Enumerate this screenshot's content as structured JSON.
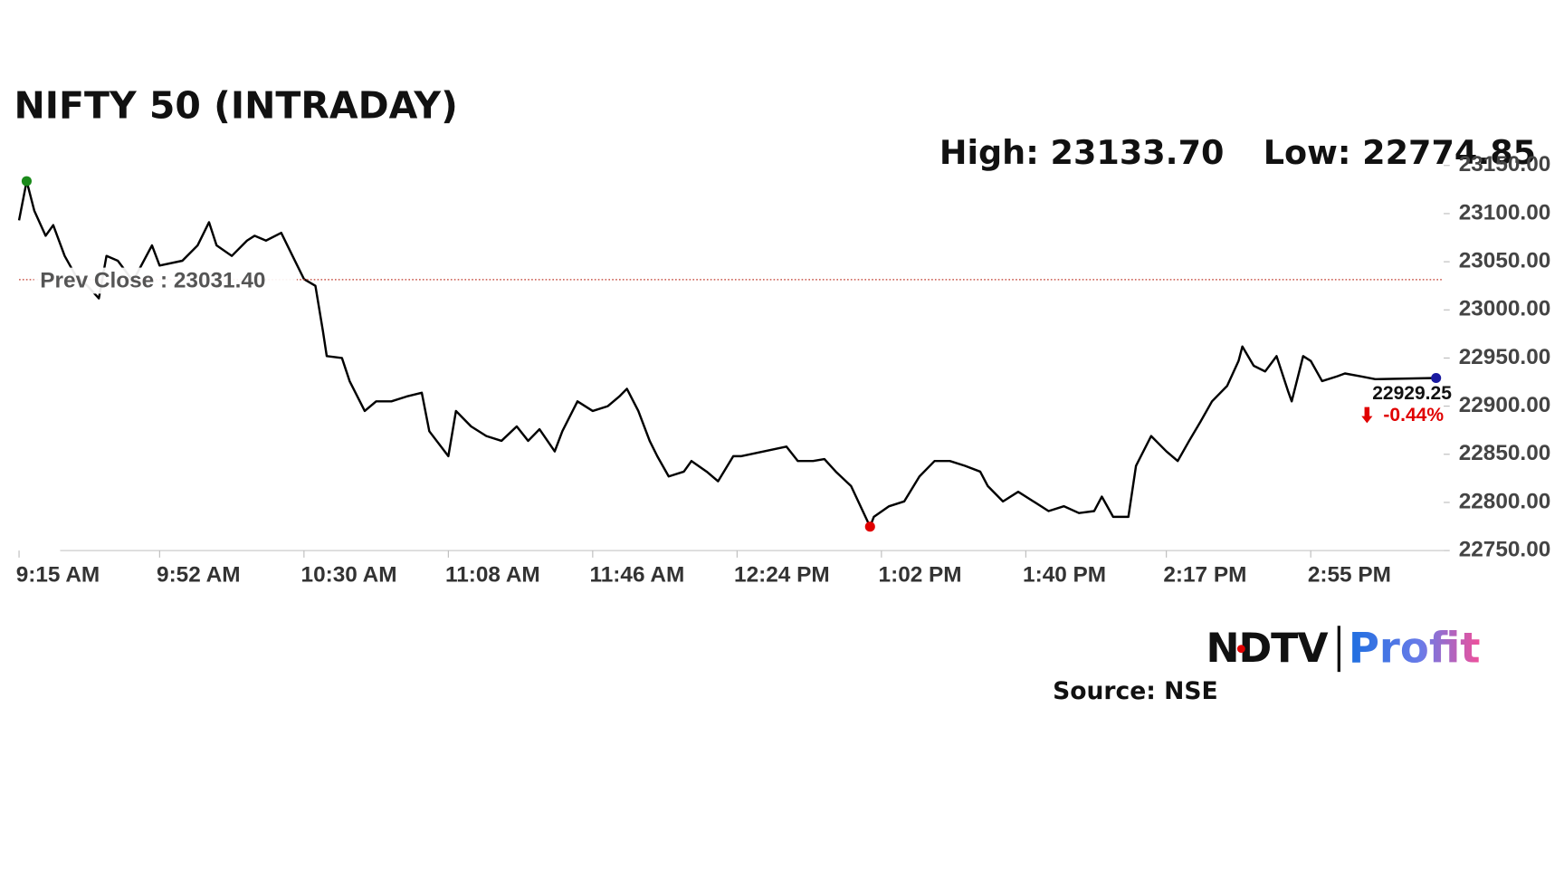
{
  "chart_data": {
    "type": "line",
    "title": "NIFTY 50 (INTRADAY)",
    "high_label": "High: 23133.70",
    "low_label": "Low: 22774.85",
    "prev_close": {
      "label": "Prev Close : 23031.40",
      "value": 23031.4,
      "color": "#c0392b"
    },
    "last_label": "22929.25",
    "change_label": "-0.44%",
    "high_color": "#1a8a1a",
    "low_color": "#e00000",
    "last_color": "#1a1aa0",
    "x": [
      "9:15 AM",
      "9:17 AM",
      "9:19 AM",
      "9:22 AM",
      "9:24 AM",
      "9:27 AM",
      "9:30 AM",
      "9:33 AM",
      "9:36 AM",
      "9:38 AM",
      "9:41 AM",
      "9:45 AM",
      "9:50 AM",
      "9:52 AM",
      "9:58 AM",
      "10:02 AM",
      "10:05 AM",
      "10:07 AM",
      "10:11 AM",
      "10:15 AM",
      "10:17 AM",
      "10:20 AM",
      "10:24 AM",
      "10:27 AM",
      "10:30 AM",
      "10:33 AM",
      "10:35 AM",
      "10:36 AM",
      "10:40 AM",
      "10:42 AM",
      "10:46 AM",
      "10:49 AM",
      "10:53 AM",
      "10:57 AM",
      "11:01 AM",
      "11:03 AM",
      "11:08 AM",
      "11:10 AM",
      "11:14 AM",
      "11:18 AM",
      "11:22 AM",
      "11:26 AM",
      "11:29 AM",
      "11:32 AM",
      "11:36 AM",
      "11:38 AM",
      "11:42 AM",
      "11:46 AM",
      "11:50 AM",
      "11:53 AM",
      "11:55 AM",
      "11:58 AM",
      "12:01 PM",
      "12:03 PM",
      "12:06 PM",
      "12:10 PM",
      "12:12 PM",
      "12:16 PM",
      "12:19 PM",
      "12:23 PM",
      "12:25 PM",
      "12:37 PM",
      "12:40 PM",
      "12:44 PM",
      "12:47 PM",
      "12:50 PM",
      "12:54 PM",
      "12:59 PM",
      "1:00 PM",
      "1:04 PM",
      "1:08 PM",
      "1:12 PM",
      "1:16 PM",
      "1:20 PM",
      "1:24 PM",
      "1:28 PM",
      "1:30 PM",
      "1:34 PM",
      "1:38 PM",
      "1:42 PM",
      "1:46 PM",
      "1:50 PM",
      "1:54 PM",
      "1:58 PM",
      "2:00 PM",
      "2:03 PM",
      "2:07 PM",
      "2:09 PM",
      "2:13 PM",
      "2:17 PM",
      "2:20 PM",
      "2:23 PM",
      "2:26 PM",
      "2:29 PM",
      "2:33 PM",
      "2:36 PM",
      "2:37 PM",
      "2:40 PM",
      "2:43 PM",
      "2:46 PM",
      "2:49 PM",
      "2:50 PM",
      "2:53 PM",
      "2:55 PM",
      "2:58 PM",
      "3:02 PM",
      "3:04 PM",
      "3:08 PM",
      "3:12 PM",
      "3:28 PM"
    ],
    "series": [
      {
        "color": "#000000",
        "values": [
          23093,
          23133.7,
          23103,
          23077,
          23088,
          23056,
          23035,
          23025,
          23012,
          23056,
          23051,
          23030,
          23067,
          23046,
          23051,
          23067,
          23091,
          23067,
          23056,
          23072,
          23077,
          23072,
          23080,
          23056,
          23032,
          23025,
          22978,
          22952,
          22950,
          22926,
          22895,
          22905,
          22905,
          22910,
          22914,
          22874,
          22848,
          22895,
          22879,
          22869,
          22864,
          22879,
          22864,
          22876,
          22853,
          22874,
          22905,
          22895,
          22900,
          22910,
          22918,
          22895,
          22864,
          22848,
          22827,
          22832,
          22843,
          22832,
          22822,
          22848,
          22848,
          22858,
          22843,
          22843,
          22845,
          22832,
          22817,
          22774.85,
          22785,
          22796,
          22801,
          22827,
          22843,
          22843,
          22838,
          22832,
          22817,
          22801,
          22811,
          22801,
          22791,
          22796,
          22789,
          22791,
          22806,
          22785,
          22785,
          22838,
          22869,
          22853,
          22843,
          22864,
          22884,
          22905,
          22921,
          22947,
          22962,
          22942,
          22936,
          22952,
          22916,
          22905,
          22952,
          22947,
          22926,
          22931,
          22934,
          22931,
          22928,
          22929.25
        ]
      }
    ],
    "xlim": [
      "9:15 AM",
      "3:30 PM"
    ],
    "xticks": [
      "9:15 AM",
      "9:52 AM",
      "10:30 AM",
      "11:08 AM",
      "11:46 AM",
      "12:24 PM",
      "1:02 PM",
      "1:40 PM",
      "2:17 PM",
      "2:55 PM"
    ],
    "ylim": [
      22750,
      23150
    ],
    "yticks": [
      {
        "value": 22750,
        "label": "22750.00"
      },
      {
        "value": 22800,
        "label": "22800.00"
      },
      {
        "value": 22850,
        "label": "22850.00"
      },
      {
        "value": 22900,
        "label": "22900.00"
      },
      {
        "value": 22950,
        "label": "22950.00"
      },
      {
        "value": 23000,
        "label": "23000.00"
      },
      {
        "value": 23050,
        "label": "23050.00"
      },
      {
        "value": 23100,
        "label": "23100.00"
      },
      {
        "value": 23150,
        "label": "23150.00"
      }
    ]
  },
  "logo": {
    "left": "NDTV",
    "right": "Profit"
  },
  "source": "Source: NSE"
}
